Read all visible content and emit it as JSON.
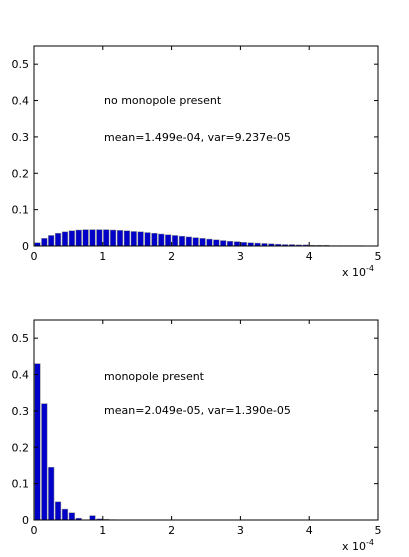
{
  "chart_data": [
    {
      "type": "bar",
      "annotations": [
        "no monopole present",
        "mean=1.499e-04, var=9.237e-05"
      ],
      "x_tick_labels": [
        "0",
        "1",
        "2",
        "3",
        "4",
        "5"
      ],
      "x_exponent_base": "x 10",
      "x_exponent_power": "-4",
      "y_tick_labels": [
        "0",
        "0.1",
        "0.2",
        "0.3",
        "0.4",
        "0.5"
      ],
      "xlim": [
        0,
        5
      ],
      "ylim": [
        0,
        0.55
      ],
      "x_scale": 0.0001,
      "bar_width": 0.1,
      "bar_color": "#0000c8",
      "grid": false,
      "x": [
        0.05,
        0.15,
        0.25,
        0.35,
        0.45,
        0.55,
        0.65,
        0.75,
        0.85,
        0.95,
        1.05,
        1.15,
        1.25,
        1.35,
        1.45,
        1.55,
        1.65,
        1.75,
        1.85,
        1.95,
        2.05,
        2.15,
        2.25,
        2.35,
        2.45,
        2.55,
        2.65,
        2.75,
        2.85,
        2.95,
        3.05,
        3.15,
        3.25,
        3.35,
        3.45,
        3.55,
        3.65,
        3.75,
        3.85,
        3.95,
        4.05,
        4.15,
        4.25,
        4.35,
        4.45,
        4.55,
        4.65,
        4.75,
        4.85,
        4.95
      ],
      "values": [
        0.009,
        0.021,
        0.029,
        0.035,
        0.039,
        0.042,
        0.044,
        0.045,
        0.045,
        0.045,
        0.045,
        0.044,
        0.043,
        0.042,
        0.04,
        0.039,
        0.037,
        0.035,
        0.033,
        0.031,
        0.029,
        0.027,
        0.025,
        0.023,
        0.021,
        0.019,
        0.017,
        0.015,
        0.013,
        0.012,
        0.01,
        0.009,
        0.008,
        0.007,
        0.006,
        0.005,
        0.004,
        0.004,
        0.003,
        0.003,
        0.002,
        0.002,
        0.002,
        0.001,
        0.001,
        0.001,
        0.001,
        0.001,
        0.0005,
        0.0005
      ]
    },
    {
      "type": "bar",
      "annotations": [
        "monopole present",
        "mean=2.049e-05, var=1.390e-05"
      ],
      "x_tick_labels": [
        "0",
        "1",
        "2",
        "3",
        "4",
        "5"
      ],
      "x_exponent_base": "x 10",
      "x_exponent_power": "-4",
      "y_tick_labels": [
        "0",
        "0.1",
        "0.2",
        "0.3",
        "0.4",
        "0.5"
      ],
      "xlim": [
        0,
        5
      ],
      "ylim": [
        0,
        0.55
      ],
      "x_scale": 0.0001,
      "bar_width": 0.1,
      "bar_color": "#0000c8",
      "grid": false,
      "x": [
        0.05,
        0.15,
        0.25,
        0.35,
        0.45,
        0.55,
        0.65,
        0.75,
        0.85,
        0.95,
        1.05,
        1.15
      ],
      "values": [
        0.43,
        0.32,
        0.145,
        0.05,
        0.03,
        0.02,
        0.005,
        0.0,
        0.012,
        0.003,
        0.002,
        0.001
      ]
    }
  ]
}
